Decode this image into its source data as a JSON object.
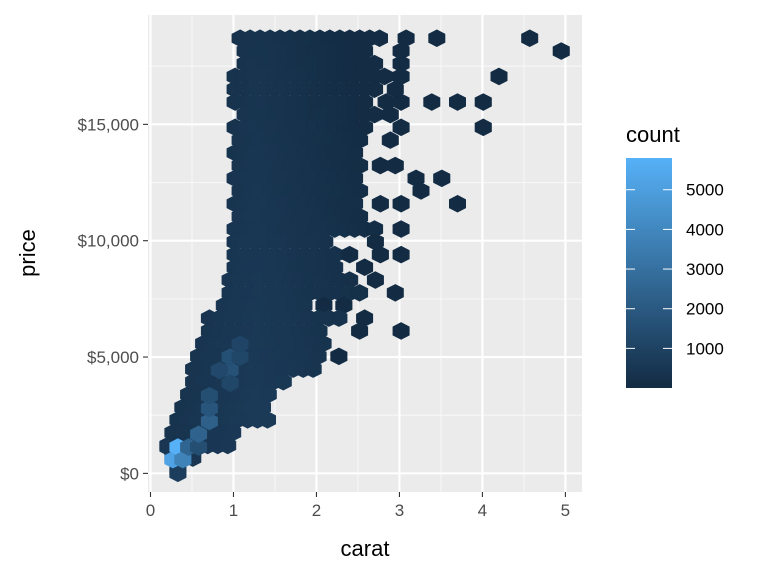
{
  "chart_data": {
    "type": "hexbin",
    "xlabel": "carat",
    "ylabel": "price",
    "xlim": [
      -0.03,
      5.2
    ],
    "ylim": [
      -800,
      19700
    ],
    "x_ticks": [
      0,
      1,
      2,
      3,
      4,
      5
    ],
    "x_tick_labels": [
      "0",
      "1",
      "2",
      "3",
      "4",
      "5"
    ],
    "y_ticks": [
      0,
      5000,
      10000,
      15000
    ],
    "y_tick_labels": [
      "$0",
      "$5,000",
      "$10,000",
      "$15,000"
    ],
    "grid": true,
    "legend": {
      "title": "count",
      "position": "right",
      "range": [
        1,
        5800
      ],
      "ticks": [
        1000,
        2000,
        3000,
        4000,
        5000
      ],
      "tick_labels": [
        "1000",
        "2000",
        "3000",
        "4000",
        "5000"
      ],
      "color_low": "#132B43",
      "color_high": "#56B1F7"
    },
    "hex_size_carat": 0.1,
    "hex_size_price": 300,
    "bins": [
      {
        "x": 0.33,
        "y": 0,
        "count": 800
      },
      {
        "x": 0.21,
        "y": 1130,
        "count": 500
      },
      {
        "x": 0.27,
        "y": 590,
        "count": 5200
      },
      {
        "x": 0.33,
        "y": 1130,
        "count": 5800
      },
      {
        "x": 0.39,
        "y": 590,
        "count": 3800
      },
      {
        "x": 0.46,
        "y": 1130,
        "count": 2500
      },
      {
        "x": 0.58,
        "y": 1130,
        "count": 1500
      },
      {
        "x": 0.58,
        "y": 1680,
        "count": 2400
      },
      {
        "x": 0.71,
        "y": 2230,
        "count": 2300
      },
      {
        "x": 0.71,
        "y": 2790,
        "count": 1800
      },
      {
        "x": 0.71,
        "y": 3340,
        "count": 1500
      },
      {
        "x": 0.96,
        "y": 4430,
        "count": 1700
      },
      {
        "x": 0.96,
        "y": 5000,
        "count": 1600
      },
      {
        "x": 0.83,
        "y": 4430,
        "count": 1300
      },
      {
        "x": 0.96,
        "y": 3880,
        "count": 1200
      },
      {
        "x": 1.08,
        "y": 5000,
        "count": 1200
      },
      {
        "x": 1.08,
        "y": 5550,
        "count": 1100
      }
    ],
    "shape_rows": [
      {
        "y": 18700,
        "x_from": 1.08,
        "x_to": 2.84,
        "extra": [
          3.08,
          3.45,
          4.57
        ]
      },
      {
        "y": 18150,
        "x_from": 1.14,
        "x_to": 2.65,
        "extra": [
          3.02,
          4.95
        ]
      },
      {
        "y": 17610,
        "x_from": 1.14,
        "x_to": 2.77,
        "extra": [
          3.02
        ]
      },
      {
        "y": 17060,
        "x_from": 1.02,
        "x_to": 2.84,
        "extra": [
          3.02,
          4.2
        ]
      },
      {
        "y": 16510,
        "x_from": 1.02,
        "x_to": 2.77,
        "extra": [
          2.95
        ]
      },
      {
        "y": 15960,
        "x_from": 1.02,
        "x_to": 2.58,
        "extra": [
          2.84,
          3.02,
          3.39,
          3.7,
          4.01
        ]
      },
      {
        "y": 15420,
        "x_from": 1.14,
        "x_to": 2.71,
        "extra": [
          2.89
        ]
      },
      {
        "y": 14870,
        "x_from": 1.02,
        "x_to": 2.65,
        "extra": [
          3.02,
          4.01
        ]
      },
      {
        "y": 14320,
        "x_from": 1.08,
        "x_to": 2.58,
        "extra": [
          2.89
        ]
      },
      {
        "y": 13780,
        "x_from": 1.02,
        "x_to": 2.52,
        "extra": []
      },
      {
        "y": 13230,
        "x_from": 1.08,
        "x_to": 2.58,
        "extra": [
          2.77,
          2.95
        ]
      },
      {
        "y": 12680,
        "x_from": 1.02,
        "x_to": 2.52,
        "extra": [
          3.2,
          3.51
        ]
      },
      {
        "y": 12140,
        "x_from": 1.08,
        "x_to": 2.58,
        "extra": [
          3.26
        ]
      },
      {
        "y": 11590,
        "x_from": 1.02,
        "x_to": 2.52,
        "extra": [
          2.77,
          3.02,
          3.7
        ]
      },
      {
        "y": 11040,
        "x_from": 1.08,
        "x_to": 2.52,
        "extra": []
      },
      {
        "y": 10500,
        "x_from": 1.02,
        "x_to": 2.71,
        "extra": [
          3.02
        ]
      },
      {
        "y": 9950,
        "x_from": 1.02,
        "x_to": 2.4,
        "extra": [
          2.71
        ]
      },
      {
        "y": 9400,
        "x_from": 1.02,
        "x_to": 2.33,
        "extra": [
          2.4,
          2.77,
          3.02
        ]
      },
      {
        "y": 8860,
        "x_from": 1.02,
        "x_to": 2.27,
        "extra": [
          2.58
        ]
      },
      {
        "y": 8310,
        "x_from": 0.96,
        "x_to": 2.46,
        "extra": [
          2.71
        ]
      },
      {
        "y": 7760,
        "x_from": 0.96,
        "x_to": 2.52,
        "extra": [
          2.95
        ]
      },
      {
        "y": 7220,
        "x_from": 0.89,
        "x_to": 1.89,
        "extra": [
          2.09,
          2.33
        ]
      },
      {
        "y": 6670,
        "x_from": 0.71,
        "x_to": 2.33,
        "extra": [
          2.58
        ]
      },
      {
        "y": 6120,
        "x_from": 0.71,
        "x_to": 2.15,
        "extra": [
          2.52,
          3.02
        ]
      },
      {
        "y": 5580,
        "x_from": 0.64,
        "x_to": 2.09,
        "extra": []
      },
      {
        "y": 5030,
        "x_from": 0.58,
        "x_to": 2.09,
        "extra": [
          2.27
        ]
      },
      {
        "y": 4480,
        "x_from": 0.52,
        "x_to": 1.96,
        "extra": []
      },
      {
        "y": 3940,
        "x_from": 0.52,
        "x_to": 1.64,
        "extra": []
      },
      {
        "y": 3390,
        "x_from": 0.46,
        "x_to": 1.52,
        "extra": []
      },
      {
        "y": 2840,
        "x_from": 0.39,
        "x_to": 1.39,
        "extra": []
      },
      {
        "y": 2300,
        "x_from": 0.33,
        "x_to": 1.52,
        "extra": []
      },
      {
        "y": 1750,
        "x_from": 0.27,
        "x_to": 1.02,
        "extra": []
      },
      {
        "y": 1200,
        "x_from": 0.21,
        "x_to": 0.96,
        "extra": []
      },
      {
        "y": 660,
        "x_from": 0.27,
        "x_to": 0.58,
        "extra": []
      },
      {
        "y": 110,
        "x_from": 0.33,
        "x_to": 0.33,
        "extra": []
      }
    ],
    "shape_holes": [
      {
        "x": 1.94,
        "y": 7140
      },
      {
        "x": 2.15,
        "y": 6050
      },
      {
        "x": 2.27,
        "y": 9910
      },
      {
        "x": 2.4,
        "y": 6050
      }
    ]
  }
}
